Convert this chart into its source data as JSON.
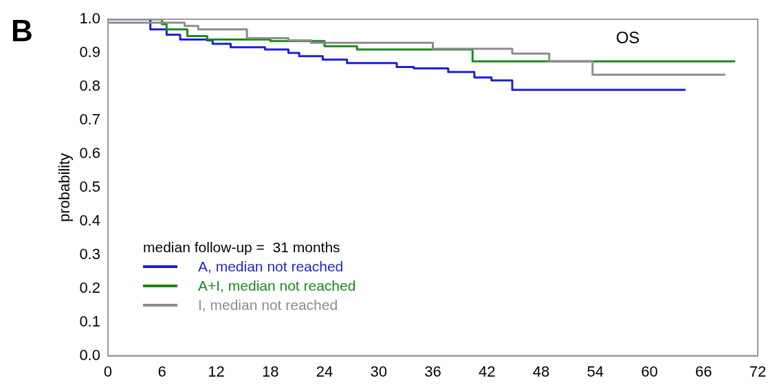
{
  "chart_data": {
    "type": "step",
    "ylabel": "probability",
    "legend_title": "median follow-up =  31 months",
    "annotations": [
      "B",
      "OS"
    ],
    "xlim": [
      0,
      72
    ],
    "xticks": [
      0,
      6,
      12,
      18,
      24,
      30,
      36,
      42,
      48,
      54,
      60,
      66,
      72
    ],
    "ylim": [
      0,
      1
    ],
    "yticks": [
      {
        "value": 0,
        "label": "0.0"
      },
      0.1,
      0.2,
      0.3,
      0.4,
      0.5,
      0.6,
      0.7,
      0.8,
      0.9,
      {
        "value": 1,
        "label": "1.0"
      }
    ],
    "grid": false,
    "legend": "bottom left",
    "series": [
      {
        "name": "A, median not reached",
        "color": "#1f1fd0",
        "x": [
          0,
          4.7,
          6.5,
          8,
          11,
          11.6,
          13.6,
          17.4,
          20,
          21.2,
          23.8,
          26.5,
          32,
          33.9,
          37.7,
          40.6,
          42.5,
          44.8,
          64
        ],
        "values": [
          1,
          0.97,
          0.954,
          0.94,
          0.937,
          0.927,
          0.917,
          0.91,
          0.9,
          0.89,
          0.88,
          0.87,
          0.858,
          0.854,
          0.843,
          0.827,
          0.818,
          0.79,
          0.79
        ]
      },
      {
        "name": "A+I, median not reached",
        "color": "#1a8a1a",
        "x": [
          4.7,
          6,
          6.5,
          8.8,
          11,
          18,
          24,
          27.6,
          40.4,
          69.5
        ],
        "values": [
          1,
          0.985,
          0.97,
          0.95,
          0.94,
          0.935,
          0.92,
          0.91,
          0.875,
          0.875
        ]
      },
      {
        "name": "I, median not reached",
        "color": "#8c8c8c",
        "x": [
          0,
          8.5,
          10,
          15.4,
          20,
          22.5,
          36,
          44.8,
          48.9,
          53.7,
          68.4
        ],
        "values": [
          0.99,
          0.98,
          0.97,
          0.944,
          0.937,
          0.93,
          0.912,
          0.898,
          0.875,
          0.835,
          0.835
        ]
      }
    ]
  }
}
